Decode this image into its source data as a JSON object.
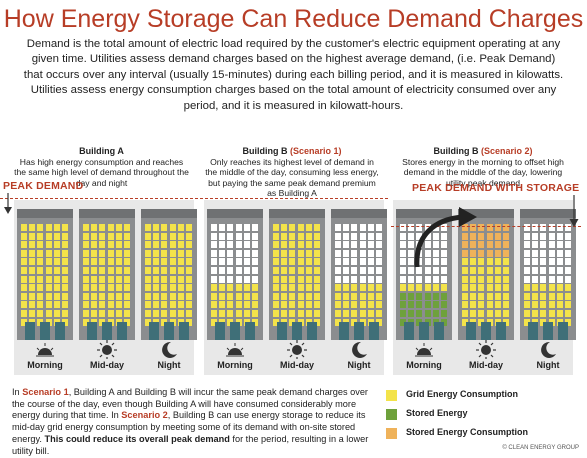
{
  "title": "How Energy Storage Can Reduce Demand Charges",
  "intro": "Demand is the total amount of electric load required by the customer's electric equipment operating at any given time. Utilities assess demand charges based on the highest average demand, (i.e. Peak Demand) that occurs over any interval (usually 15-minutes) during each billing period, and it is measured in kilowatts. Utilities assess energy consumption charges based on the total amount of electricity consumed over any period, and it is measured in kilowatt-hours.",
  "panels": [
    {
      "title": "Building A",
      "scenario": "",
      "desc": "Has high energy consumption and reaches the same high level of demand throughout the day and night",
      "buildings": [
        {
          "time": "Morning",
          "grid_fraction": 1.0,
          "stored_fraction": 0,
          "stored_consumed_fraction": 0
        },
        {
          "time": "Mid-day",
          "grid_fraction": 1.0,
          "stored_fraction": 0,
          "stored_consumed_fraction": 0
        },
        {
          "time": "Night",
          "grid_fraction": 1.0,
          "stored_fraction": 0,
          "stored_consumed_fraction": 0
        }
      ]
    },
    {
      "title": "Building B",
      "scenario": "(Scenario 1)",
      "desc": "Only reaches its highest level of demand in the middle of the day, consuming less energy, but paying the same peak demand premium as Building A",
      "buildings": [
        {
          "time": "Morning",
          "grid_fraction": 0.4,
          "stored_fraction": 0,
          "stored_consumed_fraction": 0
        },
        {
          "time": "Mid-day",
          "grid_fraction": 1.0,
          "stored_fraction": 0,
          "stored_consumed_fraction": 0
        },
        {
          "time": "Night",
          "grid_fraction": 0.4,
          "stored_fraction": 0,
          "stored_consumed_fraction": 0
        }
      ]
    },
    {
      "title": "Building B",
      "scenario": "(Scenario 2)",
      "desc": "Stores energy in the morning to offset high demand in the middle of the day, lowering utility peak demand",
      "buildings": [
        {
          "time": "Morning",
          "grid_fraction": 0.4,
          "stored_fraction": 0.3,
          "stored_consumed_fraction": 0
        },
        {
          "time": "Mid-day",
          "grid_fraction": 0.7,
          "stored_fraction": 0,
          "stored_consumed_fraction": 0.3
        },
        {
          "time": "Night",
          "grid_fraction": 0.4,
          "stored_fraction": 0,
          "stored_consumed_fraction": 0
        }
      ]
    }
  ],
  "peak_demand_label": "PEAK DEMAND",
  "peak_storage_label": "PEAK DEMAND WITH STORAGE",
  "bottom_text": {
    "p1": "In ",
    "s1": "Scenario 1",
    "p2": ", Building A and Building B will incur the same peak demand charges over the course of the day, even though Building A will have consumed considerably more energy during that time. In ",
    "s2": "Scenario 2",
    "p3": ", Building B can use energy storage to reduce its mid-day grid energy consumption by meeting some of its demand with on-site stored energy. ",
    "bold": "This could reduce its overall peak demand",
    "p4": " for the period, resulting in a lower utility bill."
  },
  "legend": [
    {
      "label": "Grid Energy Consumption",
      "color": "#f3e34a"
    },
    {
      "label": "Stored Energy",
      "color": "#6ea13b"
    },
    {
      "label": "Stored Energy Consumption",
      "color": "#efb25a"
    }
  ],
  "credit": "© CLEAN ENERGY GROUP"
}
